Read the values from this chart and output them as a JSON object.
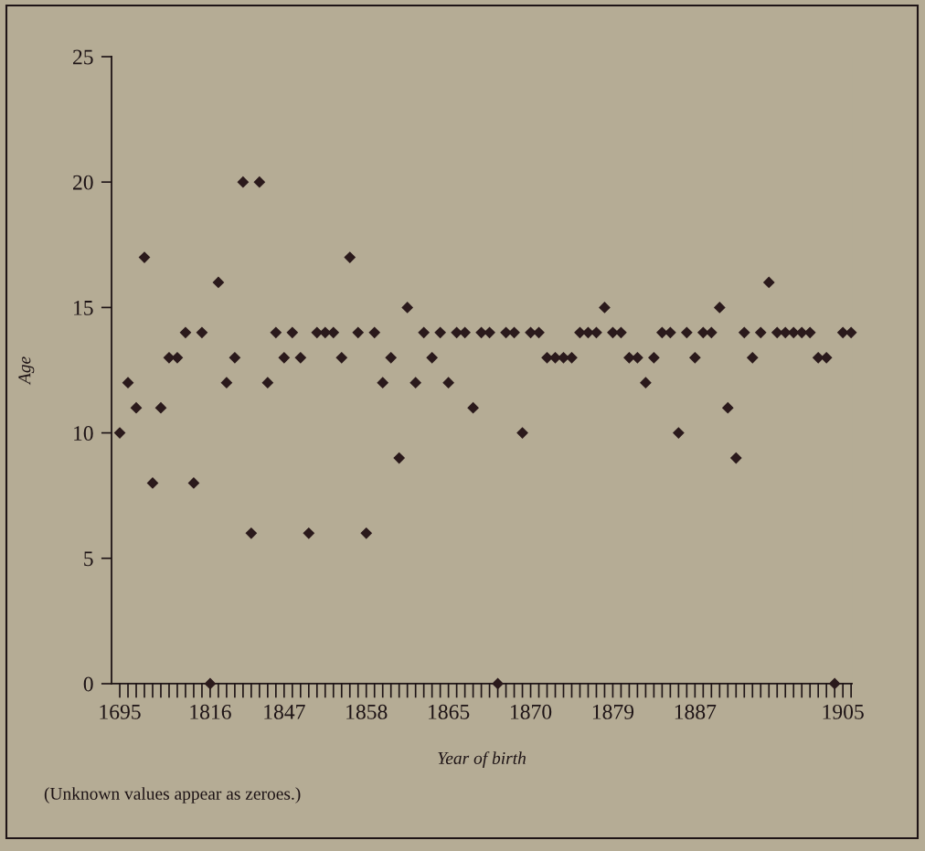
{
  "chart_data": {
    "type": "scatter",
    "xlabel": "Year of birth",
    "ylabel": "Age",
    "annotations": [
      "(Unknown values appear as zeroes.)"
    ],
    "categories": [
      "1695",
      null,
      null,
      null,
      null,
      null,
      null,
      null,
      null,
      null,
      null,
      "1816",
      null,
      null,
      null,
      null,
      null,
      null,
      null,
      null,
      "1847",
      null,
      null,
      null,
      null,
      null,
      null,
      null,
      null,
      null,
      "1858",
      null,
      null,
      null,
      null,
      null,
      null,
      null,
      null,
      null,
      "1865",
      null,
      null,
      null,
      null,
      null,
      null,
      null,
      null,
      null,
      "1870",
      null,
      null,
      null,
      null,
      null,
      null,
      null,
      null,
      null,
      "1879",
      null,
      null,
      null,
      null,
      null,
      null,
      null,
      null,
      null,
      "1887",
      null,
      null,
      null,
      null,
      null,
      null,
      null,
      null,
      null,
      null,
      null,
      null,
      null,
      null,
      null,
      null,
      null,
      "1905",
      null
    ],
    "values": [
      10,
      12,
      11,
      17,
      8,
      11,
      13,
      13,
      14,
      8,
      14,
      0,
      16,
      12,
      13,
      20,
      6,
      20,
      12,
      14,
      13,
      14,
      13,
      6,
      14,
      14,
      14,
      13,
      17,
      14,
      6,
      14,
      12,
      13,
      9,
      15,
      12,
      14,
      13,
      14,
      12,
      14,
      14,
      11,
      14,
      14,
      0,
      14,
      14,
      10,
      14,
      14,
      13,
      13,
      13,
      13,
      14,
      14,
      14,
      15,
      14,
      14,
      13,
      13,
      12,
      13,
      14,
      14,
      10,
      14,
      13,
      14,
      14,
      15,
      11,
      9,
      14,
      13,
      14,
      16,
      14,
      14,
      14,
      14,
      14,
      13,
      13,
      0,
      14,
      14
    ],
    "color": "#2b1a1c",
    "marker": "diamond",
    "ylim": [
      0,
      25
    ],
    "yticks": [
      0,
      5,
      10,
      15,
      20,
      25
    ]
  }
}
